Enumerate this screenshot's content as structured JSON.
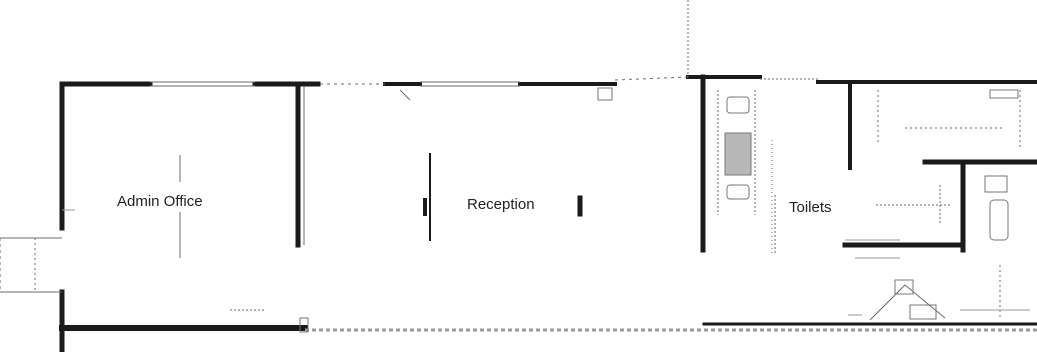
{
  "plan": {
    "rooms": [
      {
        "id": "admin",
        "label": "Admin Office"
      },
      {
        "id": "reception",
        "label": "Reception"
      },
      {
        "id": "toilets",
        "label": "Toilets"
      }
    ],
    "colors": {
      "wall": "#1a1a1a",
      "thin_line": "#6b6b6b",
      "fixture": "#777777",
      "hatch": "#9a9a9a",
      "label": "#222222"
    }
  }
}
